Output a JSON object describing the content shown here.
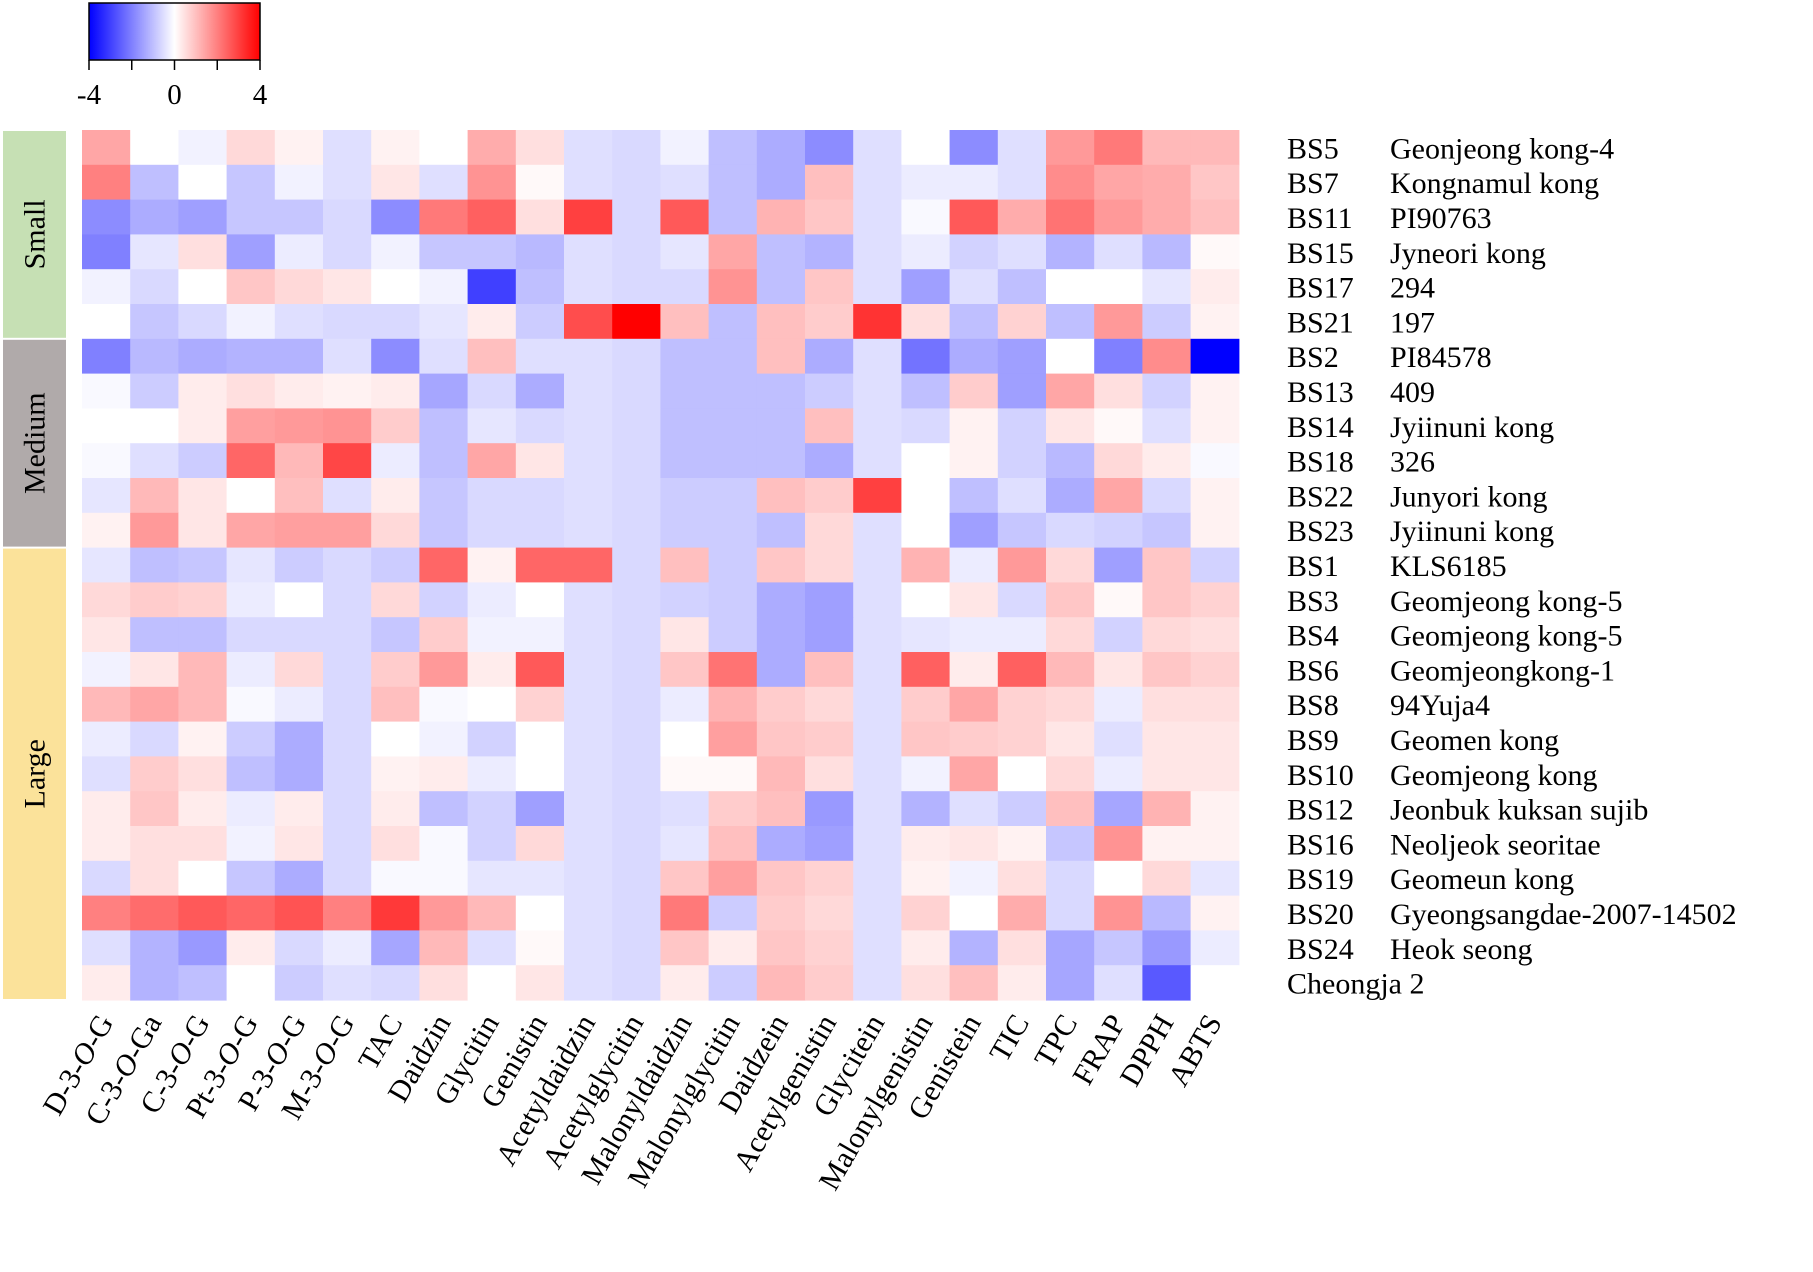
{
  "chart_data": {
    "type": "heatmap",
    "title": "",
    "colorbar": {
      "min": -4,
      "max": 4,
      "ticks": [
        -4,
        0,
        4
      ],
      "tick_labels": [
        "-4",
        "0",
        "4"
      ],
      "low_color": "#0000ff",
      "mid_color": "#ffffff",
      "high_color": "#ff0000"
    },
    "columns": [
      {
        "parts": [
          [
            "D-3-",
            false
          ],
          [
            "O",
            true
          ],
          [
            "-G",
            false
          ]
        ]
      },
      {
        "parts": [
          [
            "C-3-",
            false
          ],
          [
            "O",
            true
          ],
          [
            "-Ga",
            false
          ]
        ]
      },
      {
        "parts": [
          [
            "C-3-",
            false
          ],
          [
            "O",
            true
          ],
          [
            "-G",
            false
          ]
        ]
      },
      {
        "parts": [
          [
            "Pt-3-",
            false
          ],
          [
            "O",
            true
          ],
          [
            "-G",
            false
          ]
        ]
      },
      {
        "parts": [
          [
            "P-3-",
            false
          ],
          [
            "O",
            true
          ],
          [
            "-G",
            false
          ]
        ]
      },
      {
        "parts": [
          [
            "M-3-",
            false
          ],
          [
            "O",
            true
          ],
          [
            "-G",
            false
          ]
        ]
      },
      {
        "parts": [
          [
            "TAC",
            false
          ]
        ]
      },
      {
        "parts": [
          [
            "Daidzin",
            false
          ]
        ]
      },
      {
        "parts": [
          [
            "Glycitin",
            false
          ]
        ]
      },
      {
        "parts": [
          [
            "Genistin",
            false
          ]
        ]
      },
      {
        "parts": [
          [
            "Acetyldaidzin",
            false
          ]
        ]
      },
      {
        "parts": [
          [
            "Acetylglycitin",
            false
          ]
        ]
      },
      {
        "parts": [
          [
            "Malonyldaidzin",
            false
          ]
        ]
      },
      {
        "parts": [
          [
            "Malonylglycitin",
            false
          ]
        ]
      },
      {
        "parts": [
          [
            "Daidzein",
            false
          ]
        ]
      },
      {
        "parts": [
          [
            "Acetylgenistin",
            false
          ]
        ]
      },
      {
        "parts": [
          [
            "Glycitein",
            false
          ]
        ]
      },
      {
        "parts": [
          [
            "Malonylgenistin",
            false
          ]
        ]
      },
      {
        "parts": [
          [
            "Genistein",
            false
          ]
        ]
      },
      {
        "parts": [
          [
            "TIC",
            false
          ]
        ]
      },
      {
        "parts": [
          [
            "TPC",
            false
          ]
        ]
      },
      {
        "parts": [
          [
            "FRAP",
            false
          ]
        ]
      },
      {
        "parts": [
          [
            "DPPH",
            false
          ]
        ]
      },
      {
        "parts": [
          [
            "ABTS",
            false
          ]
        ]
      }
    ],
    "rows": [
      {
        "code": "BS5",
        "name": "Geonjeong kong-4"
      },
      {
        "code": "BS7",
        "name": "Kongnamul kong"
      },
      {
        "code": "BS11",
        "name": "PI90763"
      },
      {
        "code": "BS15",
        "name": "Jyneori kong"
      },
      {
        "code": "BS17",
        "name": "294"
      },
      {
        "code": "BS21",
        "name": "197"
      },
      {
        "code": "BS2",
        "name": "PI84578"
      },
      {
        "code": "BS13",
        "name": "409"
      },
      {
        "code": "BS14",
        "name": "Jyiinuni kong"
      },
      {
        "code": "BS18",
        "name": "326"
      },
      {
        "code": "BS22",
        "name": "Junyori kong"
      },
      {
        "code": "BS23",
        "name": "Jyiinuni kong"
      },
      {
        "code": "BS1",
        "name": "KLS6185"
      },
      {
        "code": "BS3",
        "name": "Geomjeong kong-5"
      },
      {
        "code": "BS4",
        "name": "Geomjeong kong-5"
      },
      {
        "code": "BS6",
        "name": "Geomjeongkong-1"
      },
      {
        "code": "BS8",
        "name": "94Yuja4"
      },
      {
        "code": "BS9",
        "name": "Geomen kong"
      },
      {
        "code": "BS10",
        "name": "Geomjeong kong"
      },
      {
        "code": "BS12",
        "name": "Jeonbuk kuksan sujib"
      },
      {
        "code": "BS16",
        "name": "Neoljeok seoritae"
      },
      {
        "code": "BS19",
        "name": "Geomeun kong"
      },
      {
        "code": "BS20",
        "name": "Gyeongsangdae-2007-14502"
      },
      {
        "code": "BS24",
        "name": "Heok seong"
      },
      {
        "code": "",
        "name": "Cheongja 2"
      }
    ],
    "groups": [
      {
        "label": "Small",
        "start_row": 0,
        "end_row": 5,
        "color": "#c6e0b4"
      },
      {
        "label": "Medium",
        "start_row": 6,
        "end_row": 11,
        "color": "#b0aaaa"
      },
      {
        "label": "Large",
        "start_row": 12,
        "end_row": 24,
        "color": "#fbe29a"
      }
    ],
    "values": [
      [
        1.4,
        0,
        -0.2,
        0.6,
        0.2,
        -0.5,
        0.2,
        0,
        1.3,
        0.5,
        -0.5,
        -0.6,
        -0.2,
        -1.0,
        -1.3,
        -1.8,
        -0.5,
        0,
        -1.8,
        -0.5,
        1.6,
        2.1,
        1.1,
        1.1
      ],
      [
        2.0,
        -1.0,
        0,
        -0.9,
        -0.2,
        -0.5,
        0.4,
        -0.5,
        1.7,
        0.1,
        -0.5,
        -0.6,
        -0.5,
        -1.0,
        -1.3,
        1.0,
        -0.5,
        -0.3,
        -0.3,
        -0.5,
        1.8,
        1.4,
        1.3,
        0.9
      ],
      [
        -1.8,
        -1.3,
        -1.5,
        -0.9,
        -0.9,
        -0.6,
        -1.8,
        2.1,
        2.5,
        0.5,
        3.0,
        -0.6,
        2.6,
        -1.0,
        1.2,
        0.9,
        -0.5,
        -0.1,
        2.6,
        1.3,
        2.2,
        1.6,
        1.3,
        1.0
      ],
      [
        -2.0,
        -0.4,
        0.5,
        -1.5,
        -0.3,
        -0.6,
        -0.2,
        -0.9,
        -0.9,
        -1.1,
        -0.5,
        -0.6,
        -0.4,
        1.4,
        -1.0,
        -1.2,
        -0.5,
        -0.3,
        -0.7,
        -0.5,
        -1.2,
        -0.5,
        -1.1,
        0.1
      ],
      [
        -0.2,
        -0.6,
        0,
        0.9,
        0.6,
        0.4,
        0,
        -0.2,
        -3.0,
        -1.0,
        -0.5,
        -0.6,
        -0.6,
        1.7,
        -1.0,
        0.9,
        -0.5,
        -1.5,
        -0.5,
        -1.0,
        0,
        0,
        -0.4,
        0.3
      ],
      [
        0,
        -0.9,
        -0.6,
        -0.2,
        -0.5,
        -0.6,
        -0.6,
        -0.4,
        0.3,
        -0.8,
        2.8,
        4.0,
        1.0,
        -1.0,
        1.0,
        0.8,
        3.2,
        0.5,
        -1.0,
        0.7,
        -1.0,
        1.6,
        -0.8,
        0.2
      ],
      [
        -2.0,
        -1.1,
        -1.3,
        -1.2,
        -1.2,
        -0.5,
        -1.8,
        -0.5,
        1.0,
        -0.5,
        -0.5,
        -0.6,
        -1.0,
        -1.0,
        1.0,
        -1.3,
        -0.5,
        -2.2,
        -1.3,
        -1.5,
        0,
        -2.0,
        1.8,
        -4.0
      ],
      [
        -0.1,
        -0.8,
        0.3,
        0.5,
        0.3,
        0.2,
        0.3,
        -1.4,
        -0.6,
        -1.3,
        -0.5,
        -0.6,
        -1.0,
        -1.0,
        -1.0,
        -0.8,
        -0.5,
        -1.0,
        0.8,
        -1.5,
        1.4,
        0.5,
        -0.7,
        0.2
      ],
      [
        0,
        0,
        0.3,
        1.5,
        1.6,
        1.7,
        0.8,
        -1.0,
        -0.4,
        -0.6,
        -0.5,
        -0.6,
        -1.0,
        -1.0,
        -1.0,
        1.0,
        -0.5,
        -0.6,
        0.2,
        -0.7,
        0.4,
        0.1,
        -0.5,
        0.2
      ],
      [
        -0.1,
        -0.5,
        -0.8,
        2.4,
        1.1,
        2.9,
        -0.3,
        -1.0,
        1.4,
        0.4,
        -0.5,
        -0.6,
        -1.0,
        -1.0,
        -1.0,
        -1.3,
        -0.5,
        0,
        0.2,
        -0.7,
        -1.1,
        0.6,
        0.3,
        -0.1
      ],
      [
        -0.4,
        1.1,
        0.4,
        0,
        1.0,
        -0.5,
        0.3,
        -0.9,
        -0.6,
        -0.6,
        -0.5,
        -0.6,
        -0.8,
        -0.8,
        1.0,
        0.8,
        3.0,
        0,
        -1.0,
        -0.5,
        -1.3,
        1.4,
        -0.6,
        0.2
      ],
      [
        0.2,
        1.6,
        0.4,
        1.4,
        1.5,
        1.5,
        0.6,
        -0.9,
        -0.6,
        -0.6,
        -0.5,
        -0.6,
        -0.8,
        -0.8,
        -1.0,
        0.6,
        -0.5,
        0,
        -1.5,
        -0.9,
        -0.6,
        -0.7,
        -0.9,
        0.2
      ],
      [
        -0.4,
        -1.0,
        -0.9,
        -0.4,
        -0.8,
        -0.6,
        -0.8,
        2.4,
        0.2,
        2.4,
        2.4,
        -0.6,
        1.0,
        -0.8,
        0.9,
        0.6,
        -0.5,
        1.2,
        -0.3,
        1.6,
        0.6,
        -1.5,
        0.9,
        -0.7
      ],
      [
        0.6,
        0.8,
        0.7,
        -0.3,
        0,
        -0.6,
        0.6,
        -0.7,
        -0.3,
        0,
        -0.5,
        -0.6,
        -0.7,
        -0.8,
        -1.3,
        -1.5,
        -0.5,
        0,
        0.4,
        -0.6,
        0.9,
        0.1,
        0.9,
        0.7
      ],
      [
        0.4,
        -1.0,
        -1.0,
        -0.6,
        -0.6,
        -0.6,
        -0.9,
        0.8,
        -0.2,
        -0.2,
        -0.5,
        -0.6,
        0.4,
        -0.8,
        -1.3,
        -1.5,
        -0.5,
        -0.4,
        -0.3,
        -0.3,
        0.6,
        -0.7,
        0.6,
        0.5
      ],
      [
        -0.2,
        0.4,
        1.1,
        -0.3,
        0.6,
        -0.6,
        0.8,
        1.6,
        0.3,
        2.6,
        -0.5,
        -0.6,
        0.9,
        2.2,
        -1.3,
        1.0,
        -0.5,
        2.5,
        0.3,
        2.5,
        1.1,
        0.4,
        0.9,
        0.7
      ],
      [
        1.1,
        1.4,
        1.1,
        -0.1,
        -0.3,
        -0.6,
        1.0,
        -0.1,
        0,
        0.7,
        -0.5,
        -0.6,
        -0.3,
        1.2,
        0.8,
        0.6,
        -0.5,
        0.8,
        1.4,
        0.7,
        0.6,
        -0.3,
        0.5,
        0.5
      ],
      [
        -0.3,
        -0.6,
        0.2,
        -0.8,
        -1.3,
        -0.6,
        0,
        -0.2,
        -0.7,
        0,
        -0.5,
        -0.6,
        0,
        1.5,
        0.9,
        0.8,
        -0.5,
        0.9,
        0.8,
        0.7,
        0.4,
        -0.5,
        0.4,
        0.4
      ],
      [
        -0.5,
        0.8,
        0.5,
        -1.0,
        -1.3,
        -0.6,
        0.2,
        0.3,
        -0.3,
        0,
        -0.5,
        -0.6,
        0.1,
        0.1,
        1.1,
        0.5,
        -0.5,
        -0.2,
        1.4,
        0,
        0.6,
        -0.3,
        0.4,
        0.4
      ],
      [
        0.3,
        0.9,
        0.3,
        -0.3,
        0.3,
        -0.6,
        0.3,
        -1.0,
        -0.7,
        -1.5,
        -0.5,
        -0.6,
        -0.5,
        0.8,
        1.0,
        -1.6,
        -0.5,
        -1.2,
        -0.5,
        -0.8,
        1.0,
        -1.4,
        1.2,
        0.2
      ],
      [
        0.3,
        0.5,
        0.5,
        -0.2,
        0.4,
        -0.6,
        0.5,
        -0.1,
        -0.7,
        0.6,
        -0.5,
        -0.6,
        -0.4,
        1.0,
        -1.3,
        -1.5,
        -0.5,
        0.3,
        0.4,
        0.2,
        -0.9,
        1.7,
        0.2,
        0.2
      ],
      [
        -0.6,
        0.5,
        0,
        -0.9,
        -1.3,
        -0.6,
        -0.1,
        -0.1,
        -0.4,
        -0.4,
        -0.5,
        -0.6,
        0.9,
        1.5,
        0.9,
        0.7,
        -0.5,
        0.2,
        -0.2,
        0.5,
        -0.6,
        0,
        0.6,
        -0.4
      ],
      [
        2.0,
        2.3,
        2.6,
        2.4,
        2.7,
        2.0,
        3.1,
        1.6,
        1.1,
        0,
        -0.5,
        -0.6,
        2.1,
        -0.8,
        0.8,
        0.6,
        -0.5,
        0.7,
        0,
        1.3,
        -0.6,
        1.7,
        -1.1,
        0.2
      ],
      [
        -0.5,
        -1.2,
        -1.6,
        0.3,
        -0.6,
        -0.3,
        -1.4,
        1.1,
        -0.5,
        0.1,
        -0.5,
        -0.6,
        0.9,
        0.3,
        0.9,
        0.7,
        -0.5,
        0.3,
        -1.2,
        0.5,
        -1.4,
        -0.9,
        -1.6,
        -0.3
      ],
      [
        0.3,
        -1.2,
        -1.0,
        0,
        -0.8,
        -0.5,
        -0.6,
        0.5,
        0,
        0.4,
        -0.5,
        -0.6,
        0.3,
        -0.8,
        1.1,
        0.8,
        -0.5,
        0.5,
        1.0,
        0.3,
        -1.4,
        -0.5,
        -2.6,
        0
      ]
    ]
  }
}
